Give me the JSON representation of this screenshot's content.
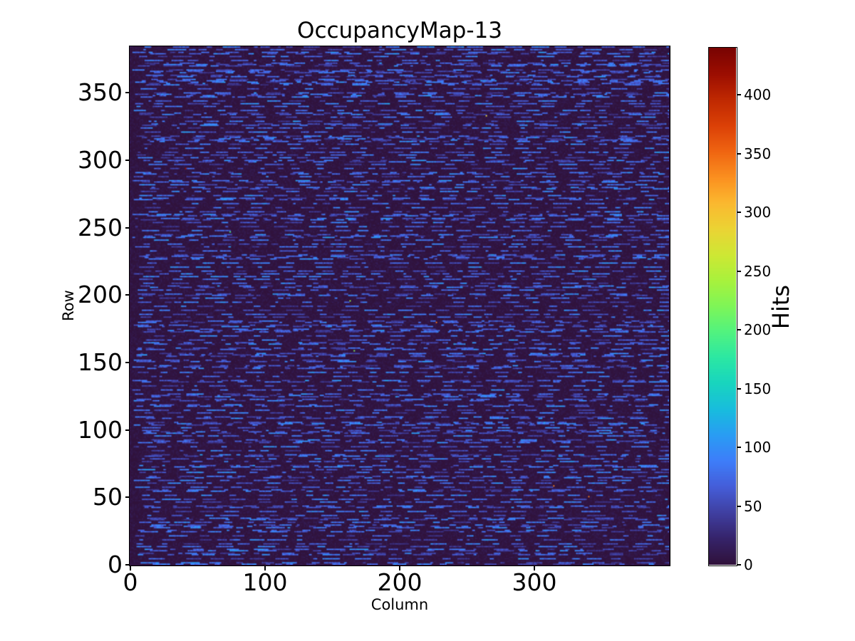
{
  "figure": {
    "background_color": "#ffffff",
    "text_color": "#000000"
  },
  "chart_data": {
    "type": "heatmap",
    "title": "OccupancyMap-13",
    "xlabel": "Column",
    "ylabel": "Row",
    "colorbar_label": "Hits",
    "n_cols": 400,
    "n_rows": 384,
    "xlim": [
      0,
      400
    ],
    "ylim": [
      0,
      384
    ],
    "x_ticks": [
      0,
      100,
      200,
      300
    ],
    "y_ticks": [
      0,
      50,
      100,
      150,
      200,
      250,
      300,
      350
    ],
    "colorbar_ticks": [
      0,
      50,
      100,
      150,
      200,
      250,
      300,
      350,
      400
    ],
    "vmin": 0,
    "vmax": 440,
    "grid": false,
    "colormap": "turbo",
    "colormap_stops": [
      [
        0.0,
        "#30123b"
      ],
      [
        0.05,
        "#36246b"
      ],
      [
        0.1,
        "#4040a2"
      ],
      [
        0.15,
        "#455ed9"
      ],
      [
        0.2,
        "#3e7efa"
      ],
      [
        0.25,
        "#2a9df4"
      ],
      [
        0.3,
        "#18bdde"
      ],
      [
        0.35,
        "#18d5c0"
      ],
      [
        0.4,
        "#2ce8a4"
      ],
      [
        0.45,
        "#52f380"
      ],
      [
        0.5,
        "#7ff658"
      ],
      [
        0.55,
        "#a9f23d"
      ],
      [
        0.6,
        "#cfe834"
      ],
      [
        0.65,
        "#ecd434"
      ],
      [
        0.7,
        "#fbb930"
      ],
      [
        0.75,
        "#fb9020"
      ],
      [
        0.8,
        "#f06512"
      ],
      [
        0.85,
        "#dc4107"
      ],
      [
        0.9,
        "#c02a02"
      ],
      [
        0.95,
        "#9d0e01"
      ],
      [
        1.0,
        "#7a0403"
      ]
    ],
    "pattern": {
      "description": "Sparse horizontal dash segments of elevated hit counts (blue, ~30-120 hits) over a near-zero dark-purple background; roughly every 2nd-3rd row contains dashes; a few isolated hot pixels reach the ~440 maximum.",
      "seed": 1337,
      "background_value_max": 14,
      "dash_value_range": [
        32,
        95
      ],
      "dash_length_cols": [
        2,
        14
      ],
      "dash_gap_cols": [
        2,
        18
      ],
      "active_row_gap": [
        1,
        3
      ],
      "hot_pixel_count": 8,
      "hot_value_range": [
        150,
        437
      ]
    }
  }
}
